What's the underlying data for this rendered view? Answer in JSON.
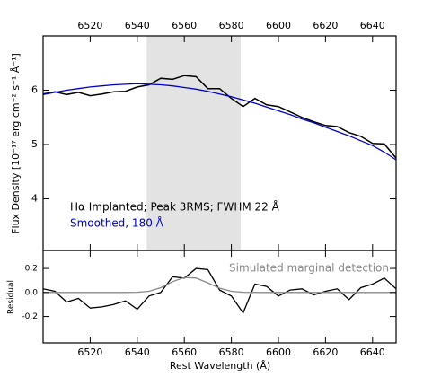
{
  "chart_data": [
    {
      "type": "line",
      "ylabel": "Flux Density  [10⁻¹⁷ erg cm⁻² s⁻¹ Å⁻¹]",
      "x": [
        6500,
        6505,
        6510,
        6515,
        6520,
        6525,
        6530,
        6535,
        6540,
        6545,
        6550,
        6555,
        6560,
        6565,
        6570,
        6575,
        6580,
        6585,
        6590,
        6595,
        6600,
        6605,
        6610,
        6615,
        6620,
        6625,
        6630,
        6635,
        6640,
        6645,
        6650
      ],
      "series": [
        {
          "name": "Hα Implanted; Peak 3RMS; FWHM 22  Å",
          "color": "#000000",
          "values": [
            5.93,
            5.97,
            5.92,
            5.96,
            5.9,
            5.93,
            5.97,
            5.98,
            6.06,
            6.1,
            6.22,
            6.2,
            6.27,
            6.25,
            6.03,
            6.03,
            5.85,
            5.7,
            5.85,
            5.73,
            5.7,
            5.6,
            5.5,
            5.42,
            5.35,
            5.33,
            5.22,
            5.15,
            5.02,
            5.01,
            4.75
          ]
        },
        {
          "name": "Smoothed, 180 Å",
          "color": "#0000cc",
          "values": [
            5.92,
            5.96,
            6.0,
            6.03,
            6.06,
            6.08,
            6.1,
            6.11,
            6.12,
            6.11,
            6.1,
            6.08,
            6.05,
            6.02,
            5.98,
            5.93,
            5.88,
            5.82,
            5.76,
            5.69,
            5.62,
            5.55,
            5.47,
            5.4,
            5.32,
            5.24,
            5.16,
            5.07,
            4.98,
            4.86,
            4.72
          ]
        }
      ],
      "highlight_range": [
        6544,
        6584
      ],
      "xlim": [
        6500,
        6650
      ],
      "xticks": [
        6520,
        6540,
        6560,
        6580,
        6600,
        6620,
        6640
      ],
      "ylim": [
        3.05,
        7.0
      ],
      "yticks": [
        4,
        5,
        6
      ],
      "legend": "lower left"
    },
    {
      "type": "line",
      "xlabel": "Rest Wavelength (Å)",
      "ylabel": "Residual",
      "x": [
        6500,
        6505,
        6510,
        6515,
        6520,
        6525,
        6530,
        6535,
        6540,
        6545,
        6550,
        6555,
        6560,
        6565,
        6570,
        6575,
        6580,
        6585,
        6590,
        6595,
        6600,
        6605,
        6610,
        6615,
        6620,
        6625,
        6630,
        6635,
        6640,
        6645,
        6650
      ],
      "series": [
        {
          "color": "#000000",
          "values": [
            0.03,
            0.01,
            -0.08,
            -0.05,
            -0.13,
            -0.12,
            -0.1,
            -0.07,
            -0.14,
            -0.03,
            0.0,
            0.13,
            0.12,
            0.2,
            0.19,
            0.02,
            -0.03,
            -0.17,
            0.07,
            0.05,
            -0.03,
            0.02,
            0.03,
            -0.02,
            0.01,
            0.03,
            -0.06,
            0.04,
            0.07,
            0.12,
            0.03
          ]
        },
        {
          "name": "Simulated marginal detection",
          "color": "#888888",
          "values": [
            0,
            0,
            0,
            0,
            0,
            0,
            0,
            0,
            0.002,
            0.01,
            0.04,
            0.09,
            0.125,
            0.12,
            0.08,
            0.035,
            0.01,
            0.002,
            0,
            0,
            0,
            0,
            0,
            0,
            0,
            0,
            0,
            0,
            0,
            0,
            0
          ]
        }
      ],
      "xlim": [
        6500,
        6650
      ],
      "xticks": [
        6520,
        6540,
        6560,
        6580,
        6600,
        6620,
        6640
      ],
      "ylim": [
        -0.42,
        0.35
      ],
      "yticks": [
        -0.2,
        {
          "value": 0,
          "label": "0.0"
        },
        0.2
      ],
      "legend": "upper right"
    }
  ]
}
